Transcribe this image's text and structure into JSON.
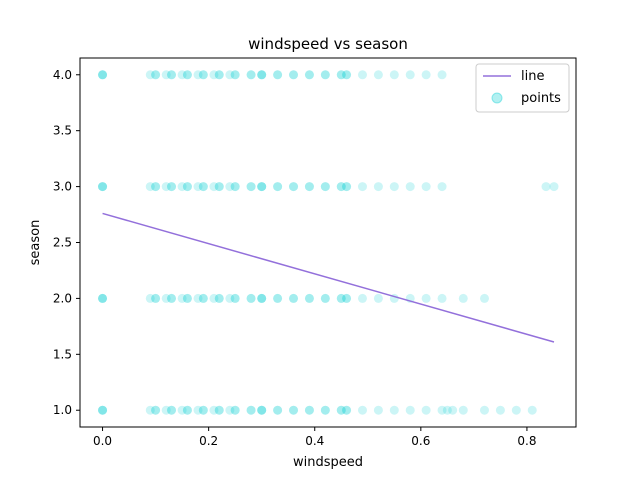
{
  "chart_data": {
    "type": "scatter",
    "title": "windspeed vs season",
    "xlabel": "windspeed",
    "ylabel": "season",
    "xlim": [
      -0.0425,
      0.8925
    ],
    "ylim": [
      0.85,
      4.15
    ],
    "xticks": [
      0.0,
      0.2,
      0.4,
      0.6,
      0.8
    ],
    "xtick_labels": [
      "0.0",
      "0.2",
      "0.4",
      "0.6",
      "0.8"
    ],
    "yticks": [
      1.0,
      1.5,
      2.0,
      2.5,
      3.0,
      3.5,
      4.0
    ],
    "ytick_labels": [
      "1.0",
      "1.5",
      "2.0",
      "2.5",
      "3.0",
      "3.5",
      "4.0"
    ],
    "grid": false,
    "legend_position": "top-right",
    "colors": {
      "line": "#9370db",
      "points": "#00ced1",
      "axes": "#000000"
    },
    "series": [
      {
        "name": "line",
        "kind": "line",
        "x": [
          0.0,
          0.851
        ],
        "y": [
          2.76,
          1.61
        ]
      },
      {
        "name": "points",
        "kind": "scatter",
        "alpha": 0.2,
        "groups": [
          {
            "y": 4.0,
            "x": [
              0.0,
              0.0,
              0.0,
              0.09,
              0.1,
              0.1,
              0.12,
              0.13,
              0.13,
              0.15,
              0.16,
              0.16,
              0.18,
              0.19,
              0.19,
              0.21,
              0.22,
              0.22,
              0.24,
              0.25,
              0.25,
              0.28,
              0.28,
              0.3,
              0.3,
              0.3,
              0.33,
              0.33,
              0.36,
              0.36,
              0.39,
              0.39,
              0.42,
              0.42,
              0.45,
              0.45,
              0.46,
              0.46,
              0.49,
              0.52,
              0.55,
              0.58,
              0.61,
              0.64
            ]
          },
          {
            "y": 3.0,
            "x": [
              0.0,
              0.0,
              0.0,
              0.09,
              0.1,
              0.1,
              0.12,
              0.13,
              0.13,
              0.15,
              0.16,
              0.16,
              0.18,
              0.19,
              0.19,
              0.21,
              0.22,
              0.22,
              0.24,
              0.25,
              0.25,
              0.28,
              0.28,
              0.3,
              0.3,
              0.3,
              0.33,
              0.33,
              0.36,
              0.36,
              0.39,
              0.39,
              0.42,
              0.42,
              0.45,
              0.45,
              0.46,
              0.46,
              0.49,
              0.52,
              0.55,
              0.58,
              0.61,
              0.64,
              0.836,
              0.851
            ]
          },
          {
            "y": 2.0,
            "x": [
              0.0,
              0.0,
              0.0,
              0.09,
              0.1,
              0.1,
              0.12,
              0.13,
              0.13,
              0.15,
              0.16,
              0.16,
              0.18,
              0.19,
              0.19,
              0.21,
              0.22,
              0.22,
              0.24,
              0.25,
              0.25,
              0.28,
              0.28,
              0.3,
              0.3,
              0.3,
              0.33,
              0.33,
              0.36,
              0.36,
              0.39,
              0.39,
              0.42,
              0.42,
              0.45,
              0.45,
              0.46,
              0.46,
              0.49,
              0.52,
              0.55,
              0.58,
              0.61,
              0.64,
              0.68,
              0.72
            ]
          },
          {
            "y": 1.0,
            "x": [
              0.0,
              0.0,
              0.0,
              0.09,
              0.1,
              0.1,
              0.12,
              0.13,
              0.13,
              0.15,
              0.16,
              0.16,
              0.18,
              0.19,
              0.19,
              0.21,
              0.22,
              0.22,
              0.24,
              0.25,
              0.25,
              0.28,
              0.28,
              0.3,
              0.3,
              0.3,
              0.33,
              0.33,
              0.36,
              0.36,
              0.39,
              0.39,
              0.42,
              0.42,
              0.45,
              0.45,
              0.46,
              0.46,
              0.49,
              0.52,
              0.55,
              0.58,
              0.61,
              0.64,
              0.65,
              0.66,
              0.68,
              0.72,
              0.75,
              0.78,
              0.81
            ]
          }
        ]
      }
    ]
  }
}
